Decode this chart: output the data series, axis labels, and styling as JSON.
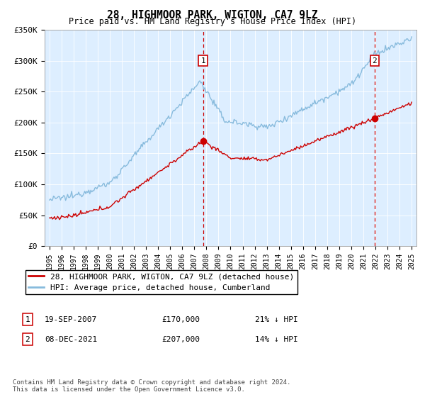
{
  "title": "28, HIGHMOOR PARK, WIGTON, CA7 9LZ",
  "subtitle": "Price paid vs. HM Land Registry's House Price Index (HPI)",
  "ylim": [
    0,
    350000
  ],
  "yticks": [
    0,
    50000,
    100000,
    150000,
    200000,
    250000,
    300000,
    350000
  ],
  "ytick_labels": [
    "£0",
    "£50K",
    "£100K",
    "£150K",
    "£200K",
    "£250K",
    "£300K",
    "£350K"
  ],
  "bg_color": "#ddeeff",
  "hpi_color": "#88bbdd",
  "price_color": "#cc0000",
  "sale1_date": "19-SEP-2007",
  "sale1_price": 170000,
  "sale1_label": "21% ↓ HPI",
  "sale1_x": 2007.72,
  "sale2_date": "08-DEC-2021",
  "sale2_price": 207000,
  "sale2_label": "14% ↓ HPI",
  "sale2_x": 2021.93,
  "vline_color": "#cc0000",
  "legend_label1": "28, HIGHMOOR PARK, WIGTON, CA7 9LZ (detached house)",
  "legend_label2": "HPI: Average price, detached house, Cumberland",
  "footer": "Contains HM Land Registry data © Crown copyright and database right 2024.\nThis data is licensed under the Open Government Licence v3.0.",
  "annotation1": "1",
  "annotation2": "2"
}
